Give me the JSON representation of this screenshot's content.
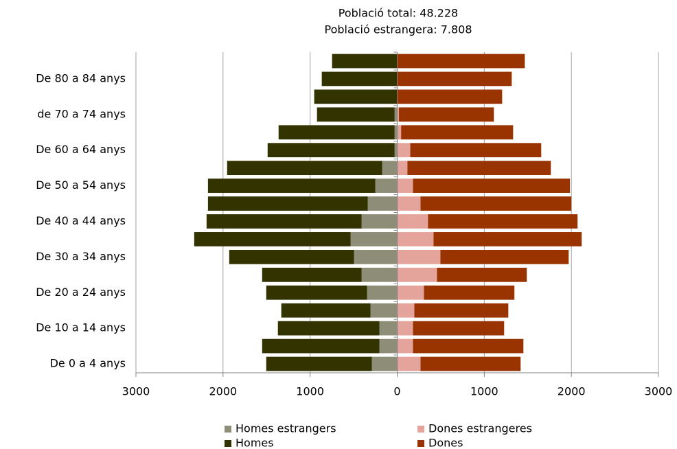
{
  "chart_data": {
    "type": "bar",
    "orientation": "horizontal",
    "stacked": true,
    "title": "Població total: 48.228",
    "subtitle": "Població estrangera: 7.808",
    "categories": [
      "De 0 a 4 anys",
      null,
      "De 10 a 14 anys",
      null,
      "De 20 a 24 anys",
      null,
      "De 30 a 34 anys",
      null,
      "De 40 a 44 anys",
      null,
      "De 50 a 54 anys",
      null,
      "De 60 a 64 anys",
      null,
      "de 70 a 74 anys",
      null,
      "De 80 a 84 anys",
      null
    ],
    "series": [
      {
        "name": "Homes estrangers",
        "color": "#8e8e78",
        "values": [
          -291,
          -205,
          -205,
          -307,
          -346,
          -409,
          -496,
          -535,
          -409,
          -339,
          -252,
          -173,
          -30,
          -30,
          -30,
          0,
          0,
          0
        ]
      },
      {
        "name": "Dones estrangeres",
        "color": "#e4a49c",
        "values": [
          268,
          181,
          181,
          197,
          307,
          457,
          496,
          417,
          354,
          268,
          181,
          118,
          150,
          45,
          20,
          0,
          0,
          0
        ]
      },
      {
        "name": "Homes",
        "color": "#333300",
        "values": [
          -1213,
          -1346,
          -1165,
          -1024,
          -1158,
          -1142,
          -1433,
          -1796,
          -1780,
          -1834,
          -1921,
          -1780,
          -1458,
          -1332,
          -891,
          -953,
          -866,
          -748
        ]
      },
      {
        "name": "Dones",
        "color": "#993300",
        "values": [
          1149,
          1268,
          1047,
          1079,
          1039,
          1031,
          1473,
          1701,
          1717,
          1732,
          1803,
          1646,
          1504,
          1286,
          1090,
          1205,
          1315,
          1465
        ]
      }
    ],
    "xlim": [
      -3000,
      3000
    ],
    "xticks": [
      {
        "value": -3000,
        "label": "3000"
      },
      {
        "value": -2000,
        "label": "2000"
      },
      {
        "value": -1000,
        "label": "1000"
      },
      0,
      1000,
      2000,
      3000
    ],
    "grid": true,
    "legend": "bottom"
  }
}
